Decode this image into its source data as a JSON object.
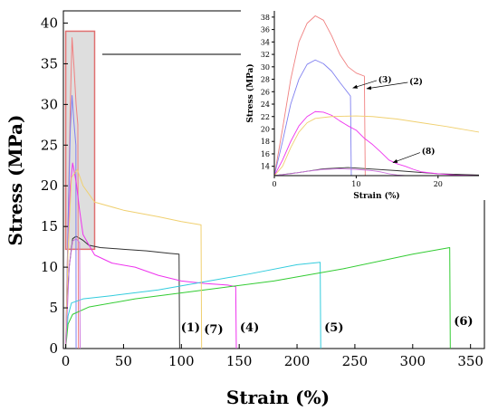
{
  "chart_data": [
    {
      "type": "line",
      "xlabel": "Strain (%)",
      "ylabel": "Stress (MPa)",
      "xlim": [
        -2,
        362
      ],
      "ylim": [
        0,
        41.5
      ],
      "xticks": [
        0,
        50,
        100,
        150,
        200,
        250,
        300,
        350
      ],
      "yticks": [
        0,
        5,
        10,
        15,
        20,
        25,
        30,
        35,
        40
      ],
      "grid": false,
      "colors": {
        "c1": "#333333",
        "c2": "#f08080",
        "c3": "#8080f0",
        "c4": "#ee33ee",
        "c5": "#33ccdd",
        "c6": "#33cc33",
        "c7": "#f0d070",
        "c8": "#cc77dd"
      },
      "series": [
        {
          "label": "(1)",
          "color_key": "c1",
          "points": [
            [
              0,
              0
            ],
            [
              1,
              5
            ],
            [
              3,
              10
            ],
            [
              6,
              13.5
            ],
            [
              9,
              13.8
            ],
            [
              15,
              13.3
            ],
            [
              20,
              12.7
            ],
            [
              30,
              12.4
            ],
            [
              50,
              12.2
            ],
            [
              70,
              12
            ],
            [
              90,
              11.7
            ],
            [
              98,
              11.6
            ],
            [
              98.5,
              0
            ]
          ]
        },
        {
          "label": "(2)",
          "color_key": "c2",
          "points": [
            [
              0,
              0
            ],
            [
              2,
              15
            ],
            [
              4,
              30
            ],
            [
              5.5,
              38.2
            ],
            [
              7,
              35
            ],
            [
              9,
              30
            ],
            [
              10.5,
              27.5
            ],
            [
              11,
              0
            ]
          ]
        },
        {
          "label": "(3)",
          "color_key": "c3",
          "points": [
            [
              0,
              0
            ],
            [
              2,
              15
            ],
            [
              4,
              27
            ],
            [
              5.5,
              31.1
            ],
            [
              7,
              28
            ],
            [
              8.8,
              25
            ],
            [
              9,
              0
            ]
          ]
        },
        {
          "label": "(4)",
          "color_key": "c4",
          "points": [
            [
              0,
              0
            ],
            [
              2,
              12
            ],
            [
              4,
              20
            ],
            [
              6,
              22.8
            ],
            [
              9,
              20.5
            ],
            [
              12,
              17
            ],
            [
              15,
              14
            ],
            [
              25,
              11.5
            ],
            [
              40,
              10.5
            ],
            [
              60,
              10
            ],
            [
              80,
              9
            ],
            [
              100,
              8.3
            ],
            [
              120,
              8
            ],
            [
              140,
              7.8
            ],
            [
              147,
              7.6
            ],
            [
              147.5,
              0
            ]
          ]
        },
        {
          "label": "(5)",
          "color_key": "c5",
          "points": [
            [
              0,
              0
            ],
            [
              2,
              4
            ],
            [
              5,
              5.6
            ],
            [
              15,
              6.1
            ],
            [
              40,
              6.5
            ],
            [
              80,
              7.2
            ],
            [
              120,
              8.2
            ],
            [
              160,
              9.2
            ],
            [
              200,
              10.3
            ],
            [
              220,
              10.6
            ],
            [
              220.5,
              0
            ]
          ]
        },
        {
          "label": "(6)",
          "color_key": "c6",
          "points": [
            [
              0,
              0
            ],
            [
              2,
              3
            ],
            [
              6,
              4.2
            ],
            [
              20,
              5.1
            ],
            [
              60,
              6.1
            ],
            [
              120,
              7.2
            ],
            [
              180,
              8.3
            ],
            [
              240,
              9.8
            ],
            [
              300,
              11.6
            ],
            [
              332,
              12.4
            ],
            [
              332.5,
              0
            ]
          ]
        },
        {
          "label": "(7)",
          "color_key": "c7",
          "points": [
            [
              0,
              0
            ],
            [
              2,
              12
            ],
            [
              5,
              21
            ],
            [
              10,
              22
            ],
            [
              15,
              20
            ],
            [
              25,
              18
            ],
            [
              50,
              17
            ],
            [
              80,
              16.2
            ],
            [
              100,
              15.6
            ],
            [
              117,
              15.2
            ],
            [
              117.5,
              0
            ]
          ]
        },
        {
          "label": "(8)",
          "color_key": "c8",
          "points": [
            [
              0,
              0
            ],
            [
              3,
              10
            ],
            [
              6,
              13.2
            ],
            [
              9,
              13.5
            ],
            [
              11,
              13.2
            ],
            [
              12,
              13
            ],
            [
              12.5,
              0
            ]
          ]
        }
      ],
      "annotations": [
        {
          "text": "(1)",
          "x": 98,
          "y": 2.1
        },
        {
          "text": "(7)",
          "x": 118,
          "y": 1.9
        },
        {
          "text": "(4)",
          "x": 149,
          "y": 2.1
        },
        {
          "text": "(5)",
          "x": 222,
          "y": 2.1
        },
        {
          "text": "(6)",
          "x": 334,
          "y": 2.9
        }
      ],
      "zoom_region": {
        "x": [
          0,
          25
        ],
        "y": [
          12.2,
          39
        ],
        "arrow_to": "inset"
      }
    },
    {
      "type": "line",
      "xlabel": "Strain (%)",
      "ylabel": "Stress (MPa)",
      "xlim": [
        0,
        25
      ],
      "ylim": [
        12.5,
        39
      ],
      "xticks": [
        0,
        10,
        20
      ],
      "yticks": [
        14,
        16,
        18,
        20,
        22,
        24,
        26,
        28,
        30,
        32,
        34,
        36,
        38
      ],
      "grid": false,
      "colors": {
        "c1": "#333333",
        "c2": "#f08080",
        "c3": "#8080f0",
        "c4": "#ee33ee",
        "c5": "#33ccdd",
        "c6": "#33cc33",
        "c7": "#f0d070",
        "c8": "#cc77dd"
      },
      "series": [
        {
          "label": "(1)",
          "color_key": "c1",
          "points": [
            [
              0,
              12.5
            ],
            [
              3,
              13
            ],
            [
              6,
              13.6
            ],
            [
              9,
              13.8
            ],
            [
              15,
              13.3
            ],
            [
              20,
              12.8
            ],
            [
              25,
              12.6
            ]
          ]
        },
        {
          "label": "(2)",
          "color_key": "c2",
          "points": [
            [
              0,
              12.5
            ],
            [
              1,
              20
            ],
            [
              2,
              28
            ],
            [
              3,
              34
            ],
            [
              4,
              37
            ],
            [
              5,
              38.2
            ],
            [
              6,
              37.5
            ],
            [
              7,
              35
            ],
            [
              8,
              32
            ],
            [
              9,
              30
            ],
            [
              10,
              29
            ],
            [
              11,
              28.5
            ],
            [
              11.1,
              12.5
            ]
          ]
        },
        {
          "label": "(3)",
          "color_key": "c3",
          "points": [
            [
              0,
              12.5
            ],
            [
              1,
              18
            ],
            [
              2,
              24
            ],
            [
              3,
              28
            ],
            [
              4,
              30.4
            ],
            [
              5,
              31.1
            ],
            [
              6,
              30.5
            ],
            [
              7,
              29.3
            ],
            [
              8,
              27.5
            ],
            [
              9.3,
              25.3
            ],
            [
              9.4,
              12.5
            ]
          ]
        },
        {
          "label": "(4)",
          "color_key": "c4",
          "points": [
            [
              0,
              12.5
            ],
            [
              1,
              15
            ],
            [
              2,
              18
            ],
            [
              3,
              20.5
            ],
            [
              4,
              22
            ],
            [
              5,
              22.8
            ],
            [
              6,
              22.7
            ],
            [
              7,
              22.2
            ],
            [
              8,
              21.3
            ],
            [
              9,
              20.5
            ],
            [
              10,
              19.8
            ],
            [
              11,
              18.5
            ],
            [
              12,
              17.5
            ],
            [
              13,
              16.3
            ],
            [
              14,
              15
            ],
            [
              15,
              14.4
            ],
            [
              16,
              14
            ],
            [
              17,
              13.5
            ],
            [
              18,
              13.1
            ],
            [
              20,
              12.8
            ],
            [
              22,
              12.6
            ],
            [
              25,
              12.5
            ]
          ]
        },
        {
          "label": "(7)",
          "color_key": "c7",
          "points": [
            [
              0,
              12.5
            ],
            [
              1,
              14
            ],
            [
              2,
              17
            ],
            [
              3,
              19.5
            ],
            [
              4,
              21
            ],
            [
              5,
              21.7
            ],
            [
              7,
              22
            ],
            [
              10,
              22.1
            ],
            [
              12,
              22
            ],
            [
              15,
              21.6
            ],
            [
              18,
              21
            ],
            [
              21,
              20.4
            ],
            [
              25,
              19.5
            ]
          ]
        },
        {
          "label": "(8)",
          "color_key": "c8",
          "points": [
            [
              0,
              12.5
            ],
            [
              2,
              12.8
            ],
            [
              4,
              13.2
            ],
            [
              6,
              13.5
            ],
            [
              8,
              13.6
            ],
            [
              10,
              13.5
            ],
            [
              12,
              13.3
            ],
            [
              13,
              13.1
            ],
            [
              14,
              12.8
            ],
            [
              15,
              12.6
            ],
            [
              16,
              12.5
            ]
          ]
        }
      ],
      "annotations": [
        {
          "text": "(3)",
          "x": 12.7,
          "y": 27.5
        },
        {
          "text": "(2)",
          "x": 16.5,
          "y": 27.2
        },
        {
          "text": "(8)",
          "x": 18,
          "y": 16
        }
      ]
    }
  ]
}
